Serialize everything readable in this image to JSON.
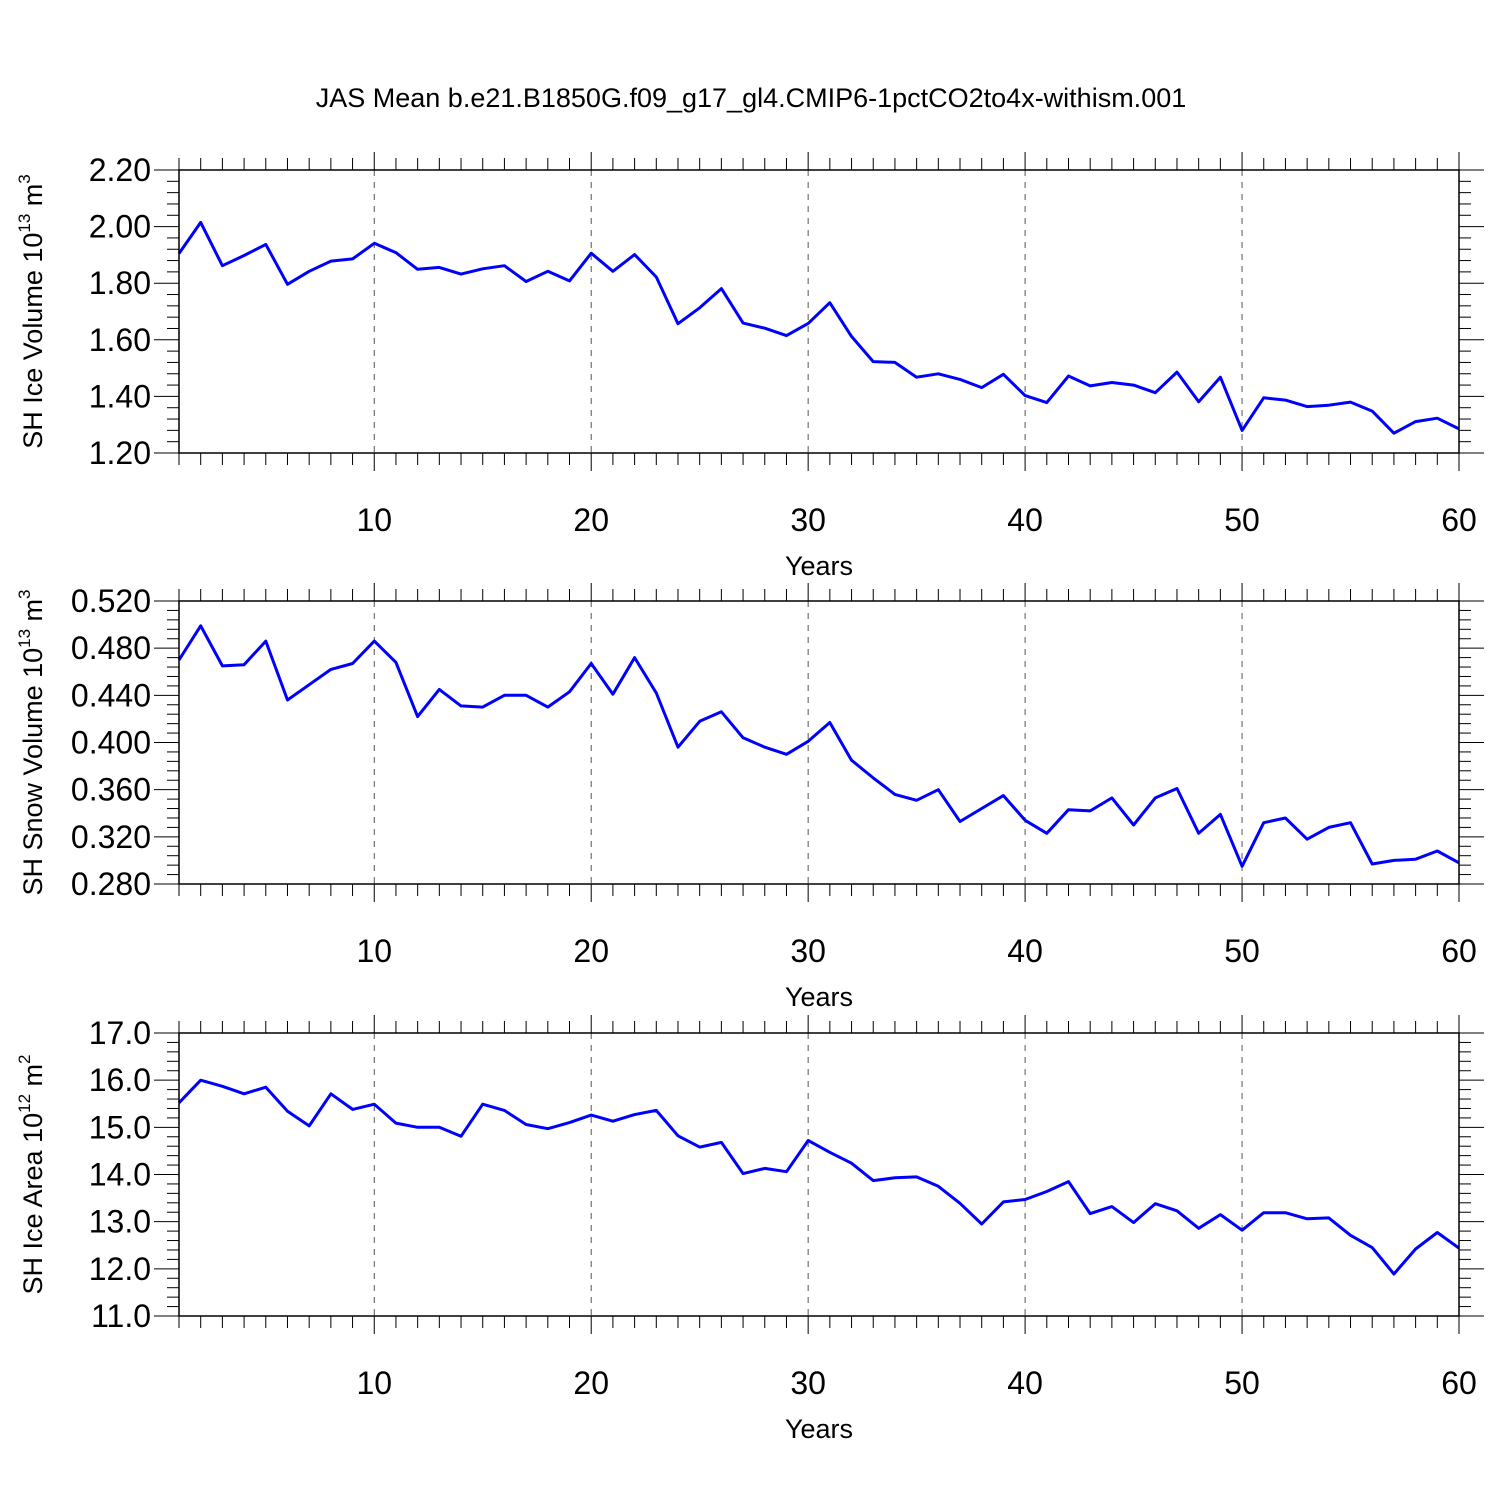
{
  "title": "JAS Mean b.e21.B1850G.f09_g17_gl4.CMIP6-1pctCO2to4x-withism.001",
  "chart_data": [
    {
      "type": "line",
      "title": "",
      "xlabel": "Years",
      "ylabel": {
        "main": "SH Ice Volume 10",
        "exp": "13",
        "unit": " m",
        "unit_exp": "3"
      },
      "xlim": [
        1,
        60
      ],
      "ylim": [
        1.2,
        2.2
      ],
      "x_ticks": [
        10,
        20,
        30,
        40,
        50,
        60
      ],
      "x_tick_labels": [
        "10",
        "20",
        "30",
        "40",
        "50",
        "60"
      ],
      "y_ticks": [
        1.2,
        1.4,
        1.6,
        1.8,
        2.0,
        2.2
      ],
      "y_tick_labels": [
        "1.20",
        "1.40",
        "1.60",
        "1.80",
        "2.00",
        "2.20"
      ],
      "grid": "vertical dashed at major x ticks",
      "line_color": "#0000ff",
      "x": [
        1,
        2,
        3,
        4,
        5,
        6,
        7,
        8,
        9,
        10,
        11,
        12,
        13,
        14,
        15,
        16,
        17,
        18,
        19,
        20,
        21,
        22,
        23,
        24,
        25,
        26,
        27,
        28,
        29,
        30,
        31,
        32,
        33,
        34,
        35,
        36,
        37,
        38,
        39,
        40,
        41,
        42,
        43,
        44,
        45,
        46,
        47,
        48,
        49,
        50,
        51,
        52,
        53,
        54,
        55,
        56,
        57,
        58,
        59,
        60
      ],
      "values": [
        1.905,
        2.015,
        1.862,
        1.898,
        1.937,
        1.796,
        1.842,
        1.878,
        1.886,
        1.941,
        1.908,
        1.849,
        1.856,
        1.832,
        1.851,
        1.862,
        1.806,
        1.842,
        1.808,
        1.906,
        1.842,
        1.901,
        1.822,
        1.657,
        1.713,
        1.781,
        1.659,
        1.641,
        1.615,
        1.658,
        1.731,
        1.612,
        1.523,
        1.52,
        1.468,
        1.48,
        1.46,
        1.431,
        1.478,
        1.403,
        1.378,
        1.472,
        1.437,
        1.449,
        1.44,
        1.413,
        1.486,
        1.381,
        1.468,
        1.28,
        1.395,
        1.387,
        1.364,
        1.369,
        1.38,
        1.348,
        1.27,
        1.311,
        1.323,
        1.285
      ]
    },
    {
      "type": "line",
      "title": "",
      "xlabel": "Years",
      "ylabel": {
        "main": "SH Snow Volume 10",
        "exp": "13",
        "unit": " m",
        "unit_exp": "3"
      },
      "xlim": [
        1,
        60
      ],
      "ylim": [
        0.28,
        0.52
      ],
      "x_ticks": [
        10,
        20,
        30,
        40,
        50,
        60
      ],
      "x_tick_labels": [
        "10",
        "20",
        "30",
        "40",
        "50",
        "60"
      ],
      "y_ticks": [
        0.28,
        0.32,
        0.36,
        0.4,
        0.44,
        0.48,
        0.52
      ],
      "y_tick_labels": [
        "0.280",
        "0.320",
        "0.360",
        "0.400",
        "0.440",
        "0.480",
        "0.520"
      ],
      "grid": "vertical dashed at major x ticks",
      "line_color": "#0000ff",
      "x": [
        1,
        2,
        3,
        4,
        5,
        6,
        7,
        8,
        9,
        10,
        11,
        12,
        13,
        14,
        15,
        16,
        17,
        18,
        19,
        20,
        21,
        22,
        23,
        24,
        25,
        26,
        27,
        28,
        29,
        30,
        31,
        32,
        33,
        34,
        35,
        36,
        37,
        38,
        39,
        40,
        41,
        42,
        43,
        44,
        45,
        46,
        47,
        48,
        49,
        50,
        51,
        52,
        53,
        54,
        55,
        56,
        57,
        58,
        59,
        60
      ],
      "values": [
        0.47,
        0.499,
        0.465,
        0.466,
        0.486,
        0.436,
        0.449,
        0.462,
        0.467,
        0.486,
        0.468,
        0.422,
        0.445,
        0.431,
        0.43,
        0.44,
        0.44,
        0.43,
        0.443,
        0.467,
        0.441,
        0.472,
        0.442,
        0.396,
        0.418,
        0.426,
        0.404,
        0.396,
        0.39,
        0.401,
        0.417,
        0.385,
        0.37,
        0.356,
        0.351,
        0.36,
        0.333,
        0.344,
        0.355,
        0.334,
        0.323,
        0.343,
        0.342,
        0.353,
        0.33,
        0.353,
        0.361,
        0.323,
        0.339,
        0.295,
        0.332,
        0.336,
        0.318,
        0.328,
        0.332,
        0.297,
        0.3,
        0.301,
        0.308,
        0.298
      ]
    },
    {
      "type": "line",
      "title": "",
      "xlabel": "Years",
      "ylabel": {
        "main": "SH Ice Area 10",
        "exp": "12",
        "unit": " m",
        "unit_exp": "2"
      },
      "xlim": [
        1,
        60
      ],
      "ylim": [
        11.0,
        17.0
      ],
      "x_ticks": [
        10,
        20,
        30,
        40,
        50,
        60
      ],
      "x_tick_labels": [
        "10",
        "20",
        "30",
        "40",
        "50",
        "60"
      ],
      "y_ticks": [
        11.0,
        12.0,
        13.0,
        14.0,
        15.0,
        16.0,
        17.0
      ],
      "y_tick_labels": [
        "11.0",
        "12.0",
        "13.0",
        "14.0",
        "15.0",
        "16.0",
        "17.0"
      ],
      "grid": "vertical dashed at major x ticks",
      "line_color": "#0000ff",
      "x": [
        1,
        2,
        3,
        4,
        5,
        6,
        7,
        8,
        9,
        10,
        11,
        12,
        13,
        14,
        15,
        16,
        17,
        18,
        19,
        20,
        21,
        22,
        23,
        24,
        25,
        26,
        27,
        28,
        29,
        30,
        31,
        32,
        33,
        34,
        35,
        36,
        37,
        38,
        39,
        40,
        41,
        42,
        43,
        44,
        45,
        46,
        47,
        48,
        49,
        50,
        51,
        52,
        53,
        54,
        55,
        56,
        57,
        58,
        59,
        60
      ],
      "values": [
        15.52,
        16.0,
        15.87,
        15.71,
        15.85,
        15.34,
        15.03,
        15.71,
        15.38,
        15.49,
        15.09,
        15.0,
        15.0,
        14.81,
        15.49,
        15.36,
        15.06,
        14.97,
        15.1,
        15.26,
        15.13,
        15.27,
        15.36,
        14.82,
        14.58,
        14.68,
        14.02,
        14.13,
        14.06,
        14.72,
        14.47,
        14.24,
        13.87,
        13.93,
        13.95,
        13.75,
        13.39,
        12.95,
        13.42,
        13.47,
        13.64,
        13.85,
        13.17,
        13.32,
        12.98,
        13.38,
        13.23,
        12.86,
        13.15,
        12.82,
        13.19,
        13.19,
        13.06,
        13.08,
        12.71,
        12.45,
        11.89,
        12.42,
        12.77,
        12.44
      ]
    }
  ]
}
